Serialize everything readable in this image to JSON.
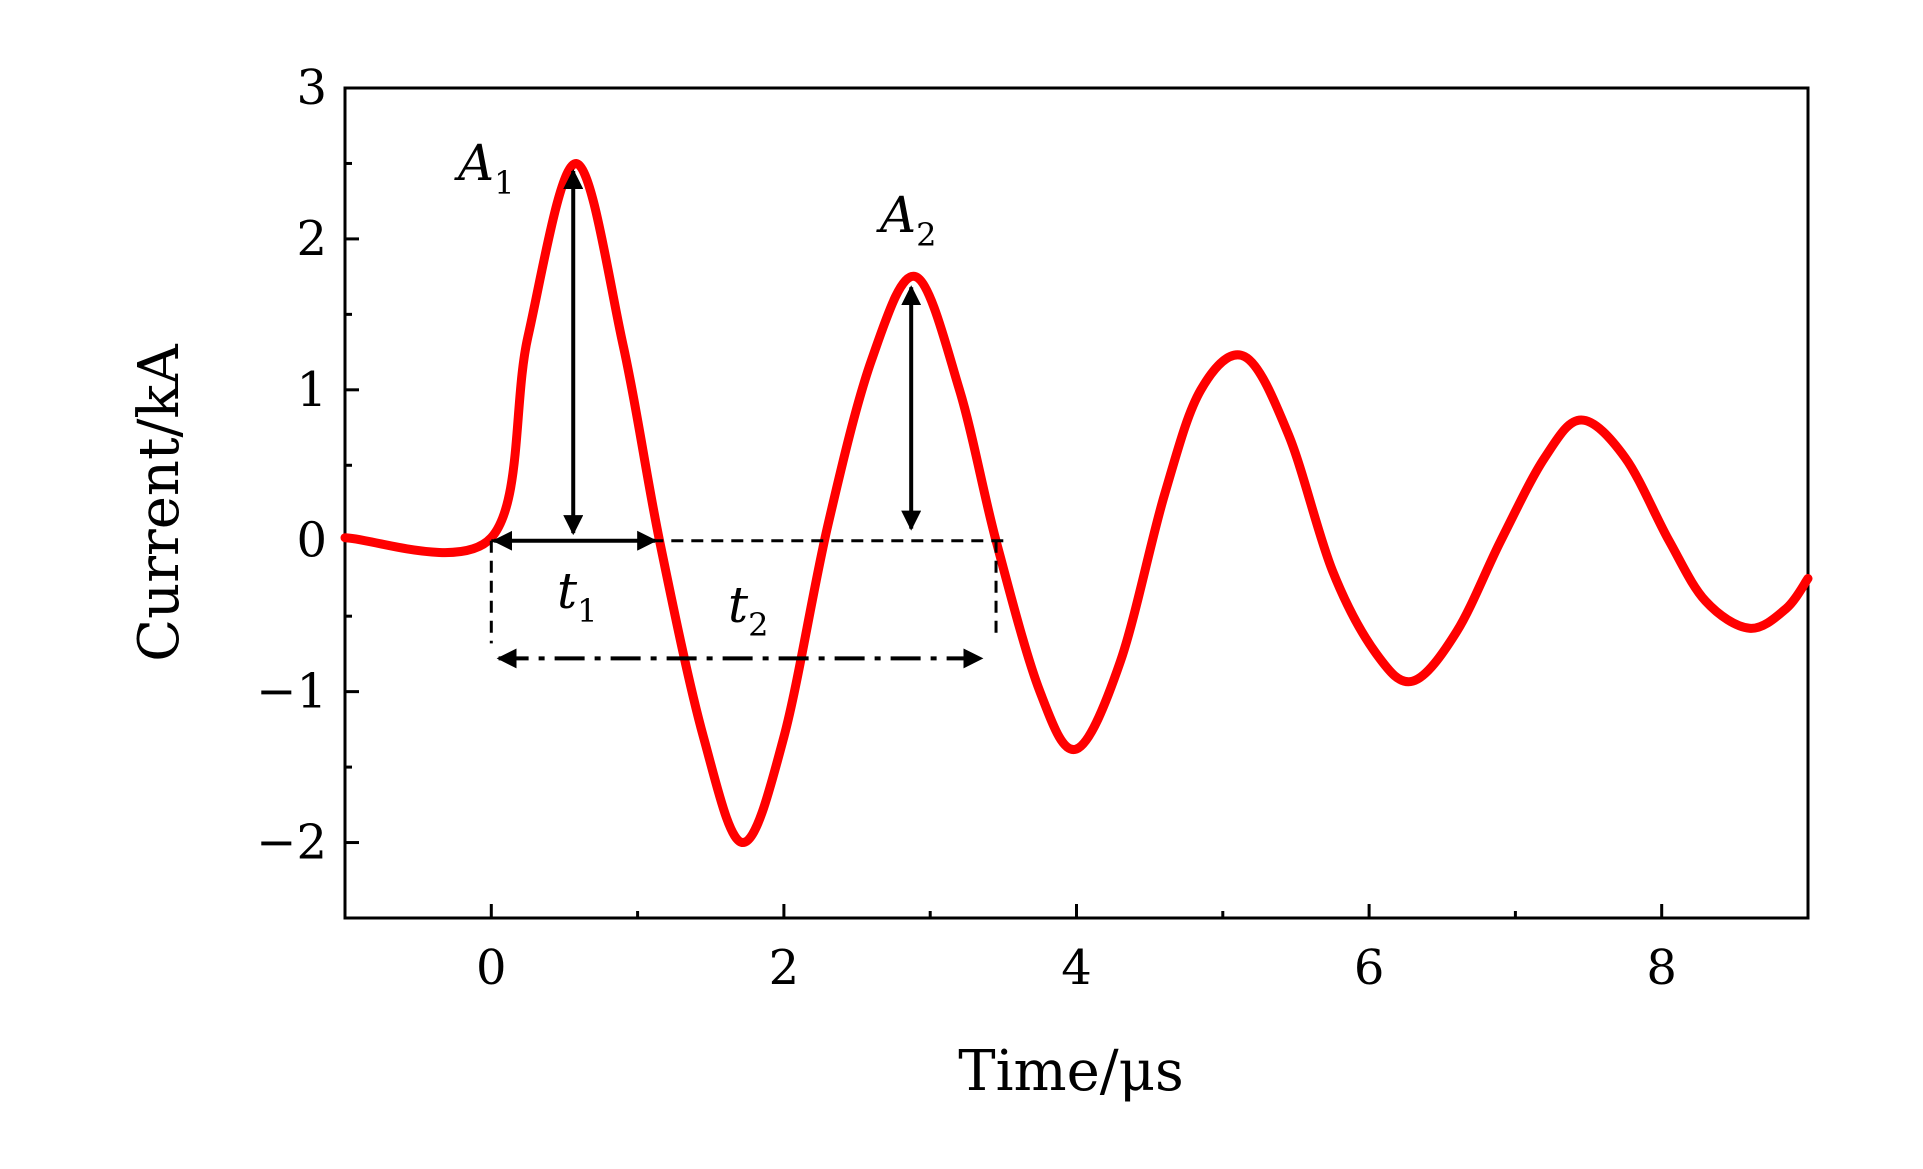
{
  "chart_data": {
    "type": "line",
    "title": "",
    "xlabel": "Time/μs",
    "ylabel": "Current/kA",
    "xlim": [
      -1,
      9
    ],
    "ylim": [
      -2.5,
      3
    ],
    "xticks": [
      0,
      2,
      4,
      6,
      8
    ],
    "xtick_labels": [
      "0",
      "2",
      "4",
      "6",
      "8"
    ],
    "yticks": [
      -2,
      -1,
      0,
      1,
      2,
      3
    ],
    "ytick_labels": [
      "−2",
      "−1",
      "0",
      "1",
      "2",
      "3"
    ],
    "grid": false,
    "legend": "none",
    "colors": {
      "series": "#ff0000",
      "annotation": "#000000"
    },
    "series": [
      {
        "x": [
          -1,
          0,
          0.25,
          0.58,
          0.9,
          1.15,
          1.45,
          1.72,
          2.0,
          2.3,
          2.6,
          2.9,
          3.2,
          3.45,
          3.75,
          4.0,
          4.3,
          4.6,
          4.85,
          5.15,
          5.45,
          5.75,
          6.05,
          6.3,
          6.6,
          6.9,
          7.2,
          7.45,
          7.75,
          8.05,
          8.3,
          8.6,
          8.85,
          9.0
        ],
        "y": [
          0.02,
          0.02,
          1.35,
          2.5,
          1.3,
          0.0,
          -1.3,
          -2.0,
          -1.3,
          0.1,
          1.2,
          1.75,
          1.0,
          0.0,
          -1.0,
          -1.38,
          -0.8,
          0.3,
          1.0,
          1.22,
          0.7,
          -0.2,
          -0.75,
          -0.93,
          -0.6,
          0.0,
          0.55,
          0.8,
          0.55,
          0.0,
          -0.4,
          -0.58,
          -0.45,
          -0.25
        ]
      }
    ],
    "annotations": [
      {
        "label": "A",
        "subscript": "1"
      },
      {
        "label": "A",
        "subscript": "2"
      },
      {
        "label": "t",
        "subscript": "1"
      },
      {
        "label": "t",
        "subscript": "2"
      }
    ]
  }
}
